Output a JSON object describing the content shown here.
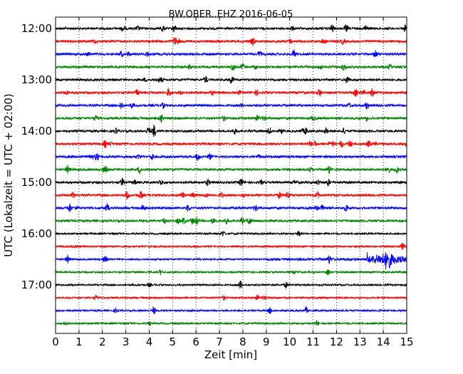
{
  "chart_data": {
    "type": "line",
    "title": "BW.OBER..EHZ 2016-06-05",
    "xlabel": "Zeit  [min]",
    "ylabel": "UTC (Lokalzeit = UTC + 02:00)",
    "xlim": [
      0,
      15
    ],
    "x_ticks": [
      0,
      1,
      2,
      3,
      4,
      5,
      6,
      7,
      8,
      9,
      10,
      11,
      12,
      13,
      14,
      15
    ],
    "x_tick_labels": [
      "0",
      "1",
      "2",
      "3",
      "4",
      "5",
      "6",
      "7",
      "8",
      "9",
      "10",
      "11",
      "12",
      "13",
      "14",
      "15"
    ],
    "y_tick_labels": [
      "12:00",
      "13:00",
      "14:00",
      "15:00",
      "16:00",
      "17:00"
    ],
    "y_tick_row_index": [
      0,
      4,
      8,
      12,
      16,
      20
    ],
    "grid": "vertical dotted lines at each minute",
    "trace_colors": [
      "#000000",
      "#ff0000",
      "#0000ff",
      "#008000"
    ],
    "trace_start_times": [
      "12:00",
      "12:15",
      "12:30",
      "12:45",
      "13:00",
      "13:15",
      "13:30",
      "13:45",
      "14:00",
      "14:15",
      "14:30",
      "14:45",
      "15:00",
      "15:15",
      "15:30",
      "15:45",
      "16:00",
      "16:15",
      "16:30",
      "16:45",
      "17:00",
      "17:15",
      "17:30",
      "17:45"
    ],
    "notable_event": {
      "trace_start": "16:30",
      "from_min": 13.3,
      "to_min": 14.8,
      "peak_min": 14.1
    }
  }
}
